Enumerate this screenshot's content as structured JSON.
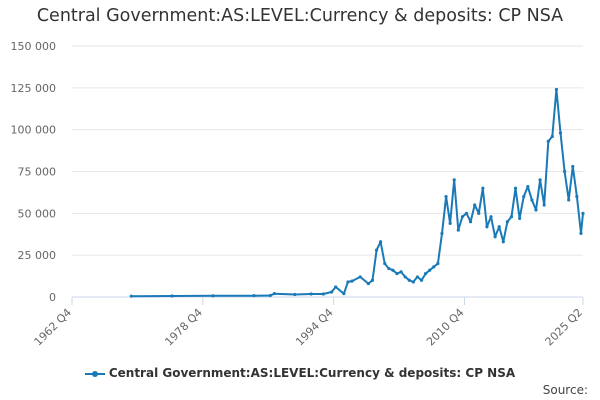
{
  "chart_data": {
    "type": "line",
    "title": "Central Government:AS:LEVEL:Currency & deposits: CP NSA",
    "xlabel": "",
    "ylabel": "",
    "x_ticks": [
      "1962 Q4",
      "1978 Q4",
      "1994 Q4",
      "2010 Q4",
      "2025 Q2"
    ],
    "y_ticks": [
      "0",
      "25 000",
      "50 000",
      "75 000",
      "100 000",
      "125 000",
      "150 000"
    ],
    "ylim": [
      0,
      150000
    ],
    "xlim": [
      "1962 Q4",
      "2025 Q2"
    ],
    "grid": "horizontal",
    "legend_position": "bottom",
    "series": [
      {
        "name": "Central Government:AS:LEVEL:Currency & deposits: CP NSA",
        "color": "#1a7ab8",
        "x": [
          "1970 Q1",
          "1975 Q1",
          "1980 Q1",
          "1985 Q1",
          "1987 Q1",
          "1987 Q3",
          "1990 Q1",
          "1992 Q1",
          "1993 Q3",
          "1994 Q3",
          "1995 Q1",
          "1996 Q1",
          "1996 Q3",
          "1997 Q1",
          "1998 Q1",
          "1999 Q1",
          "1999 Q3",
          "2000 Q1",
          "2000 Q3",
          "2001 Q1",
          "2001 Q3",
          "2002 Q1",
          "2002 Q3",
          "2003 Q1",
          "2003 Q3",
          "2004 Q1",
          "2004 Q3",
          "2005 Q1",
          "2005 Q3",
          "2006 Q1",
          "2006 Q3",
          "2007 Q1",
          "2007 Q3",
          "2008 Q1",
          "2008 Q3",
          "2009 Q1",
          "2009 Q3",
          "2010 Q1",
          "2010 Q3",
          "2011 Q1",
          "2011 Q3",
          "2012 Q1",
          "2012 Q3",
          "2013 Q1",
          "2013 Q3",
          "2014 Q1",
          "2014 Q3",
          "2015 Q1",
          "2015 Q3",
          "2016 Q1",
          "2016 Q3",
          "2017 Q1",
          "2017 Q3",
          "2018 Q1",
          "2018 Q3",
          "2019 Q1",
          "2019 Q3",
          "2020 Q1",
          "2020 Q3",
          "2021 Q1",
          "2021 Q3",
          "2022 Q1",
          "2022 Q3",
          "2023 Q1",
          "2023 Q3",
          "2024 Q1",
          "2024 Q3",
          "2025 Q1",
          "2025 Q2"
        ],
        "values": [
          500,
          600,
          700,
          800,
          900,
          2000,
          1500,
          1800,
          1800,
          3000,
          6000,
          2000,
          9000,
          9500,
          12000,
          8000,
          10000,
          28000,
          33000,
          20000,
          17000,
          16000,
          14000,
          15000,
          12000,
          10000,
          9000,
          12000,
          10000,
          14000,
          16000,
          18000,
          20000,
          38000,
          60000,
          44000,
          70000,
          40000,
          48000,
          50000,
          45000,
          55000,
          50000,
          65000,
          42000,
          48000,
          36000,
          42000,
          33000,
          45000,
          48000,
          65000,
          47000,
          60000,
          66000,
          58000,
          52000,
          70000,
          55000,
          93000,
          96000,
          124000,
          98000,
          75000,
          58000,
          78000,
          60000,
          38000,
          50000
        ]
      }
    ]
  },
  "source_label": "Source:"
}
